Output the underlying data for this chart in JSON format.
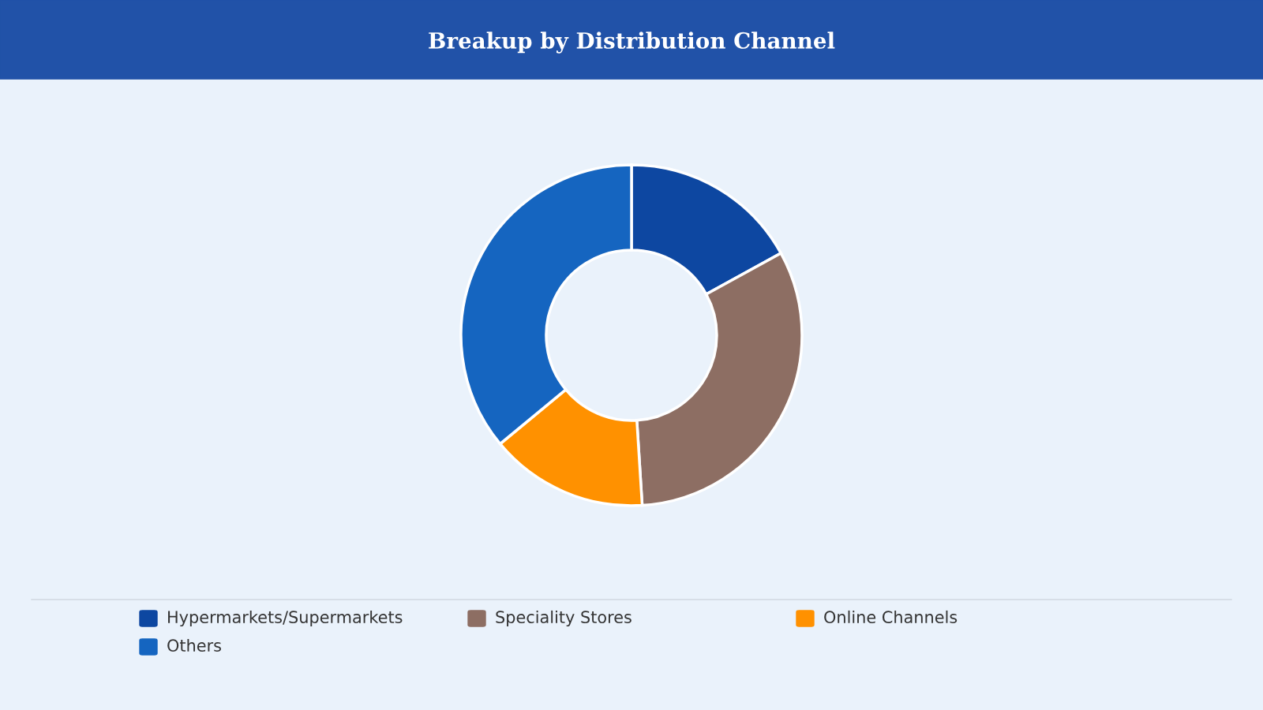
{
  "chart_data": {
    "type": "donut",
    "title": "Breakup by Distribution Channel",
    "categories": [
      "Hypermarkets/Supermarkets",
      "Speciality Stores",
      "Online Channels",
      "Others"
    ],
    "values": [
      17,
      32,
      15,
      36
    ],
    "colors": [
      "#0d47a1",
      "#8d6e63",
      "#ff9100",
      "#1565c0"
    ],
    "legend": "bottom"
  }
}
